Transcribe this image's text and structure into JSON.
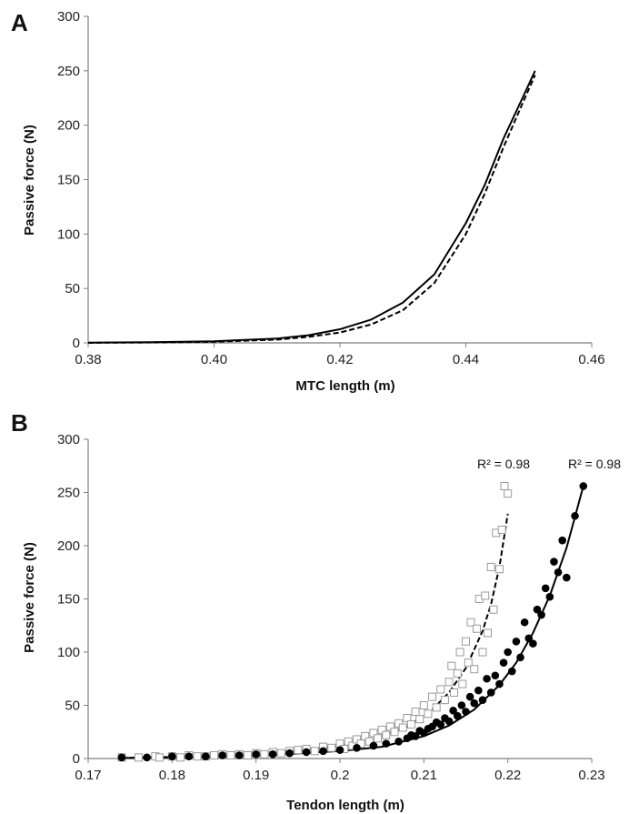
{
  "chart_data": [
    {
      "panel_label": "A",
      "type": "line",
      "xlabel": "MTC length (m)",
      "ylabel": "Passive force (N)",
      "xlim": [
        0.38,
        0.46
      ],
      "ylim": [
        0,
        300
      ],
      "xticks": [
        "0.38",
        "0.40",
        "0.42",
        "0.44",
        "0.46"
      ],
      "yticks": [
        "0",
        "50",
        "100",
        "150",
        "200",
        "250",
        "300"
      ],
      "grid": false,
      "series": [
        {
          "style": "solid",
          "x": [
            0.38,
            0.39,
            0.4,
            0.41,
            0.415,
            0.42,
            0.425,
            0.43,
            0.435,
            0.44,
            0.443,
            0.446,
            0.449,
            0.451
          ],
          "y": [
            0.2,
            0.6,
            1.5,
            4,
            7,
            12.5,
            21.5,
            37,
            63,
            110,
            145,
            188,
            225,
            250
          ]
        },
        {
          "style": "dashed",
          "x": [
            0.38,
            0.39,
            0.4,
            0.41,
            0.415,
            0.42,
            0.425,
            0.43,
            0.435,
            0.44,
            0.443,
            0.446,
            0.449,
            0.451
          ],
          "y": [
            0.1,
            0.4,
            1.0,
            3,
            5.5,
            9.5,
            17,
            30,
            55,
            100,
            137,
            180,
            220,
            246
          ]
        }
      ]
    },
    {
      "panel_label": "B",
      "type": "scatter",
      "xlabel": "Tendon length (m)",
      "ylabel": "Passive force (N)",
      "xlim": [
        0.17,
        0.23
      ],
      "ylim": [
        0,
        300
      ],
      "xticks": [
        "0.17",
        "0.18",
        "0.19",
        "0.2",
        "0.21",
        "0.22",
        "0.23"
      ],
      "yticks": [
        "0",
        "50",
        "100",
        "150",
        "200",
        "250",
        "300"
      ],
      "grid": false,
      "annotations": [
        "R² = 0.98",
        "R² = 0.98"
      ],
      "series": [
        {
          "marker": "open-square",
          "x": [
            0.174,
            0.176,
            0.178,
            0.1785,
            0.18,
            0.181,
            0.182,
            0.183,
            0.184,
            0.185,
            0.186,
            0.187,
            0.188,
            0.189,
            0.19,
            0.191,
            0.192,
            0.193,
            0.194,
            0.195,
            0.196,
            0.197,
            0.198,
            0.199,
            0.2,
            0.2005,
            0.201,
            0.2015,
            0.202,
            0.2025,
            0.203,
            0.2035,
            0.204,
            0.2045,
            0.205,
            0.2055,
            0.206,
            0.2065,
            0.207,
            0.2075,
            0.208,
            0.2085,
            0.209,
            0.2095,
            0.21,
            0.2105,
            0.211,
            0.2115,
            0.212,
            0.2125,
            0.213,
            0.2133,
            0.2136,
            0.214,
            0.2143,
            0.2146,
            0.215,
            0.2153,
            0.2156,
            0.216,
            0.2163,
            0.2166,
            0.217,
            0.2173,
            0.2176,
            0.218,
            0.2183,
            0.2186,
            0.219,
            0.2193,
            0.2196,
            0.22
          ],
          "y": [
            1,
            1,
            2,
            1,
            2,
            1,
            3,
            2,
            2,
            3,
            4,
            3,
            4,
            3,
            5,
            4,
            6,
            5,
            7,
            8,
            9,
            7,
            11,
            10,
            14,
            9,
            16,
            12,
            18,
            14,
            21,
            16,
            24,
            19,
            27,
            22,
            30,
            25,
            33,
            29,
            38,
            32,
            44,
            37,
            50,
            42,
            58,
            48,
            65,
            55,
            72,
            87,
            62,
            80,
            100,
            70,
            110,
            90,
            128,
            84,
            122,
            150,
            100,
            153,
            118,
            180,
            140,
            212,
            178,
            215,
            256,
            249
          ]
        },
        {
          "marker": "filled-circle",
          "x": [
            0.174,
            0.177,
            0.18,
            0.182,
            0.184,
            0.186,
            0.188,
            0.19,
            0.192,
            0.194,
            0.196,
            0.198,
            0.2,
            0.202,
            0.204,
            0.2055,
            0.207,
            0.208,
            0.2085,
            0.209,
            0.2095,
            0.21,
            0.2105,
            0.211,
            0.2115,
            0.212,
            0.2125,
            0.213,
            0.2135,
            0.214,
            0.2145,
            0.215,
            0.2155,
            0.216,
            0.2165,
            0.217,
            0.2175,
            0.218,
            0.2185,
            0.219,
            0.2195,
            0.22,
            0.2205,
            0.221,
            0.2215,
            0.222,
            0.2225,
            0.223,
            0.2235,
            0.224,
            0.2245,
            0.225,
            0.2255,
            0.226,
            0.2265,
            0.227,
            0.228,
            0.229
          ],
          "y": [
            1,
            1,
            2,
            2,
            2,
            3,
            3,
            4,
            4,
            5,
            6,
            7,
            8,
            10,
            12,
            14,
            16,
            19,
            22,
            21,
            26,
            24,
            28,
            30,
            34,
            32,
            38,
            35,
            45,
            40,
            50,
            44,
            58,
            52,
            64,
            55,
            75,
            62,
            78,
            70,
            90,
            100,
            82,
            110,
            95,
            128,
            113,
            108,
            140,
            135,
            160,
            152,
            185,
            175,
            205,
            170,
            228,
            256
          ]
        }
      ],
      "fits": [
        {
          "style": "dashed",
          "x": [
            0.174,
            0.18,
            0.19,
            0.195,
            0.2,
            0.205,
            0.208,
            0.211,
            0.213,
            0.215,
            0.217,
            0.218,
            0.219,
            0.22
          ],
          "y": [
            0.5,
            1.5,
            4,
            7,
            12,
            21,
            30,
            46,
            62,
            85,
            120,
            145,
            180,
            230
          ]
        },
        {
          "style": "solid",
          "x": [
            0.174,
            0.18,
            0.19,
            0.2,
            0.205,
            0.21,
            0.213,
            0.216,
            0.219,
            0.221,
            0.223,
            0.225,
            0.227,
            0.229
          ],
          "y": [
            0.5,
            1,
            2.5,
            7,
            11,
            21,
            31,
            46,
            69,
            90,
            118,
            153,
            198,
            256
          ]
        }
      ]
    }
  ]
}
